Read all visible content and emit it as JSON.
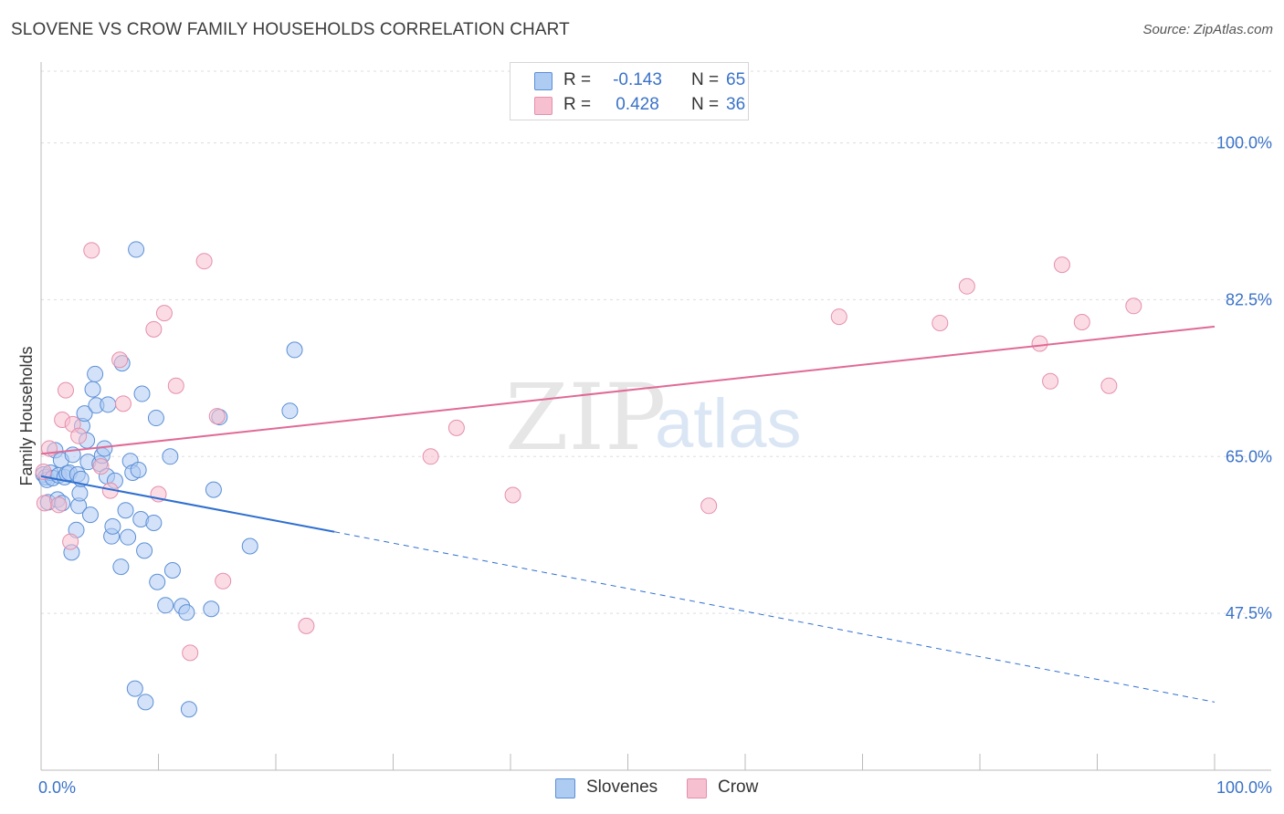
{
  "title": "SLOVENE VS CROW FAMILY HOUSEHOLDS CORRELATION CHART",
  "source": "Source: ZipAtlas.com",
  "watermark": {
    "zip": "ZIP",
    "atlas": "atlas"
  },
  "legend": {
    "r_label": "R =",
    "n_label": "N =",
    "series": [
      {
        "name": "Slovenes",
        "r": "-0.143",
        "n": "65",
        "fill": "#aecbf2",
        "stroke": "#5b8fd6"
      },
      {
        "name": "Crow",
        "r": "0.428",
        "n": "36",
        "fill": "#f7c0d0",
        "stroke": "#e58fab"
      }
    ]
  },
  "colors": {
    "blue_line": "#2f6fd0",
    "pink_line": "#e06a96",
    "axis_text": "#3a72c8",
    "grid": "#dddddd"
  },
  "chart_data": {
    "type": "scatter",
    "title": "SLOVENE VS CROW FAMILY HOUSEHOLDS CORRELATION CHART",
    "xlabel": "",
    "ylabel": "Family Households",
    "xlim": [
      0,
      100
    ],
    "ylim": [
      30,
      108
    ],
    "x_tick_labels": [
      "0.0%",
      "100.0%"
    ],
    "y_ticks": [
      47.5,
      65.0,
      82.5,
      100.0
    ],
    "y_tick_labels": [
      "47.5%",
      "65.0%",
      "82.5%",
      "100.0%"
    ],
    "grid": true,
    "legend_position": "top-center",
    "series": [
      {
        "name": "Slovenes",
        "points": [
          [
            0.2,
            63.0
          ],
          [
            0.4,
            62.7
          ],
          [
            0.5,
            62.4
          ],
          [
            0.6,
            59.9
          ],
          [
            0.8,
            63.2
          ],
          [
            1.0,
            62.6
          ],
          [
            1.2,
            65.7
          ],
          [
            1.4,
            60.2
          ],
          [
            1.5,
            62.9
          ],
          [
            1.7,
            64.6
          ],
          [
            1.8,
            59.8
          ],
          [
            2.0,
            62.7
          ],
          [
            2.2,
            63.1
          ],
          [
            2.4,
            63.2
          ],
          [
            2.6,
            54.3
          ],
          [
            2.7,
            65.2
          ],
          [
            3.0,
            56.8
          ],
          [
            3.1,
            63.0
          ],
          [
            3.2,
            59.5
          ],
          [
            3.3,
            60.9
          ],
          [
            3.4,
            62.5
          ],
          [
            3.5,
            68.4
          ],
          [
            3.7,
            69.8
          ],
          [
            3.9,
            66.8
          ],
          [
            4.0,
            64.4
          ],
          [
            4.2,
            58.5
          ],
          [
            4.4,
            72.5
          ],
          [
            4.6,
            74.2
          ],
          [
            4.7,
            70.7
          ],
          [
            5.0,
            64.2
          ],
          [
            5.2,
            65.1
          ],
          [
            5.4,
            65.9
          ],
          [
            5.6,
            62.8
          ],
          [
            5.7,
            70.8
          ],
          [
            6.0,
            56.1
          ],
          [
            6.1,
            57.2
          ],
          [
            6.3,
            62.3
          ],
          [
            6.8,
            52.7
          ],
          [
            6.9,
            75.4
          ],
          [
            7.2,
            59.0
          ],
          [
            7.4,
            56.0
          ],
          [
            7.6,
            64.5
          ],
          [
            7.8,
            63.2
          ],
          [
            8.0,
            39.1
          ],
          [
            8.1,
            88.1
          ],
          [
            8.3,
            63.5
          ],
          [
            8.5,
            58.0
          ],
          [
            8.6,
            72.0
          ],
          [
            8.8,
            54.5
          ],
          [
            8.9,
            37.6
          ],
          [
            9.6,
            57.6
          ],
          [
            9.8,
            69.3
          ],
          [
            9.9,
            51.0
          ],
          [
            10.6,
            48.4
          ],
          [
            11.0,
            65.0
          ],
          [
            11.2,
            52.3
          ],
          [
            12.0,
            48.3
          ],
          [
            12.4,
            47.6
          ],
          [
            12.6,
            36.8
          ],
          [
            14.5,
            48.0
          ],
          [
            14.7,
            61.3
          ],
          [
            15.2,
            69.4
          ],
          [
            17.8,
            55.0
          ],
          [
            21.2,
            70.1
          ],
          [
            21.6,
            76.9
          ]
        ]
      },
      {
        "name": "Crow",
        "points": [
          [
            0.3,
            59.8
          ],
          [
            0.7,
            65.9
          ],
          [
            1.5,
            59.6
          ],
          [
            1.8,
            69.1
          ],
          [
            2.1,
            72.4
          ],
          [
            2.5,
            55.5
          ],
          [
            2.7,
            68.6
          ],
          [
            3.2,
            67.3
          ],
          [
            4.3,
            88.0
          ],
          [
            5.1,
            63.9
          ],
          [
            5.9,
            61.2
          ],
          [
            6.7,
            75.8
          ],
          [
            7.0,
            70.9
          ],
          [
            9.6,
            79.2
          ],
          [
            10.0,
            60.8
          ],
          [
            10.5,
            81.0
          ],
          [
            11.5,
            72.9
          ],
          [
            12.7,
            43.1
          ],
          [
            13.9,
            86.8
          ],
          [
            15.0,
            69.5
          ],
          [
            15.5,
            51.1
          ],
          [
            22.6,
            46.1
          ],
          [
            33.2,
            65.0
          ],
          [
            35.4,
            68.2
          ],
          [
            40.2,
            60.7
          ],
          [
            56.9,
            59.5
          ],
          [
            68.0,
            80.6
          ],
          [
            76.6,
            79.9
          ],
          [
            78.9,
            84.0
          ],
          [
            85.1,
            77.6
          ],
          [
            86.0,
            73.4
          ],
          [
            87.0,
            86.4
          ],
          [
            88.7,
            80.0
          ],
          [
            91.0,
            72.9
          ],
          [
            93.1,
            81.8
          ],
          [
            0.2,
            63.3
          ]
        ]
      }
    ],
    "trend_lines": [
      {
        "series": "Slovenes",
        "x": [
          0,
          25
        ],
        "y": [
          62.8,
          56.6
        ],
        "dashed_to": [
          100,
          37.6
        ]
      },
      {
        "series": "Crow",
        "x": [
          0,
          100
        ],
        "y": [
          65.3,
          79.5
        ]
      }
    ]
  }
}
